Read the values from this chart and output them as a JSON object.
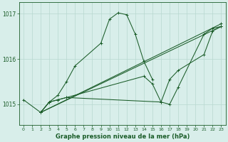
{
  "bg_color": "#d8eeea",
  "grid_color": "#b8d8d0",
  "line_color": "#1a5c28",
  "title": "Graphe pression niveau de la mer (hPa)",
  "xlim": [
    -0.5,
    23.5
  ],
  "ylim": [
    1014.55,
    1017.25
  ],
  "yticks": [
    1015,
    1016,
    1017
  ],
  "xticks": [
    0,
    1,
    2,
    3,
    4,
    5,
    6,
    7,
    8,
    9,
    10,
    11,
    12,
    13,
    14,
    15,
    16,
    17,
    18,
    19,
    20,
    21,
    22,
    23
  ],
  "series": [
    {
      "x": [
        0,
        2,
        3,
        4,
        5,
        6,
        9,
        10,
        11,
        12,
        13,
        14,
        15
      ],
      "y": [
        1015.1,
        1014.82,
        1015.05,
        1015.2,
        1015.5,
        1015.85,
        1016.35,
        1016.88,
        1017.02,
        1016.98,
        1016.55,
        1015.95,
        1015.55
      ]
    },
    {
      "x": [
        2,
        23
      ],
      "y": [
        1014.82,
        1016.72
      ]
    },
    {
      "x": [
        2,
        23
      ],
      "y": [
        1014.82,
        1016.78
      ]
    },
    {
      "x": [
        2,
        3,
        4,
        5,
        16,
        17,
        18,
        21,
        22,
        23
      ],
      "y": [
        1014.82,
        1015.05,
        1015.1,
        1015.15,
        1015.05,
        1015.0,
        1015.38,
        1016.55,
        1016.68,
        1016.72
      ]
    },
    {
      "x": [
        2,
        3,
        4,
        5,
        14,
        15,
        16,
        17,
        18,
        21,
        22,
        23
      ],
      "y": [
        1014.82,
        1015.05,
        1015.1,
        1015.15,
        1015.62,
        1015.45,
        1015.05,
        1015.55,
        1015.75,
        1016.1,
        1016.62,
        1016.72
      ]
    }
  ]
}
